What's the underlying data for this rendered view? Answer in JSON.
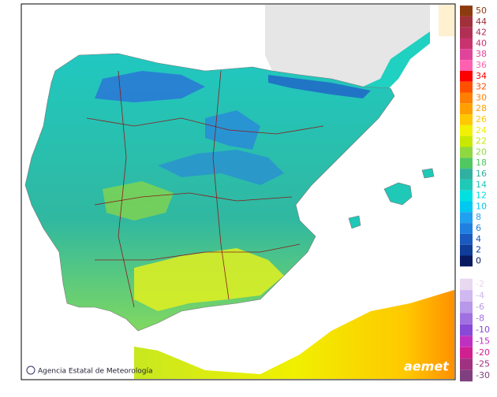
{
  "map": {
    "credit": "Agencia Estatal de Meteorología",
    "logo": "aemet",
    "legend": [
      {
        "label": "50",
        "color": "#8c3a10"
      },
      {
        "label": "44",
        "color": "#a0303a"
      },
      {
        "label": "42",
        "color": "#b02f55"
      },
      {
        "label": "40",
        "color": "#c8336f"
      },
      {
        "label": "38",
        "color": "#e0449a"
      },
      {
        "label": "36",
        "color": "#ff60b0"
      },
      {
        "label": "34",
        "color": "#ff0000"
      },
      {
        "label": "32",
        "color": "#ff5000"
      },
      {
        "label": "30",
        "color": "#ff8000"
      },
      {
        "label": "28",
        "color": "#ffa000"
      },
      {
        "label": "26",
        "color": "#ffc800"
      },
      {
        "label": "24",
        "color": "#f0f000"
      },
      {
        "label": "22",
        "color": "#c8e800"
      },
      {
        "label": "20",
        "color": "#90d840"
      },
      {
        "label": "18",
        "color": "#50c860"
      },
      {
        "label": "16",
        "color": "#30b0a0"
      },
      {
        "label": "14",
        "color": "#20c8b8"
      },
      {
        "label": "12",
        "color": "#00e0e0"
      },
      {
        "label": "10",
        "color": "#00c8f0"
      },
      {
        "label": "8",
        "color": "#20a0f0"
      },
      {
        "label": "6",
        "color": "#2080e0"
      },
      {
        "label": "4",
        "color": "#1a5ac0"
      },
      {
        "label": "2",
        "color": "#103c9a"
      },
      {
        "label": "0",
        "color": "#0a1a60"
      },
      {
        "label": "-2",
        "color": "#e8d8f0"
      },
      {
        "label": "-4",
        "color": "#d0b8f0"
      },
      {
        "label": "-6",
        "color": "#b898e8"
      },
      {
        "label": "-8",
        "color": "#a070e0"
      },
      {
        "label": "-10",
        "color": "#8848d8"
      },
      {
        "label": "-15",
        "color": "#c030c0"
      },
      {
        "label": "-20",
        "color": "#d02090"
      },
      {
        "label": "-25",
        "color": "#a03080"
      },
      {
        "label": "-30",
        "color": "#804080"
      }
    ]
  }
}
